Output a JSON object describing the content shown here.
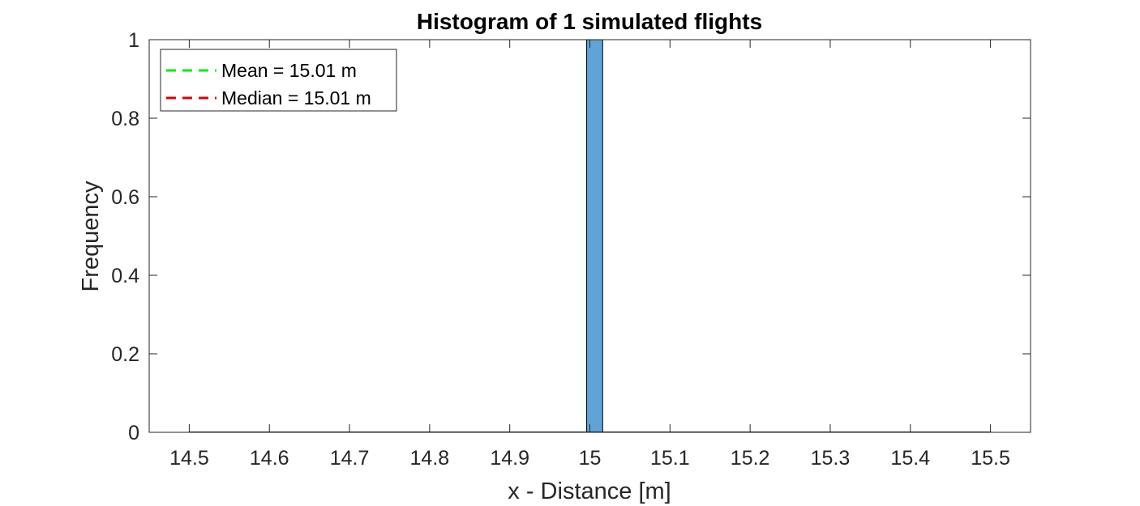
{
  "chart_data": {
    "type": "bar",
    "title": "Histogram of 1 simulated flights",
    "xlabel": "x - Distance [m]",
    "ylabel": "Frequency",
    "xlim": [
      14.45,
      15.55
    ],
    "ylim": [
      0,
      1
    ],
    "xticks": [
      14.5,
      14.6,
      14.7,
      14.8,
      14.9,
      15,
      15.1,
      15.2,
      15.3,
      15.4,
      15.5
    ],
    "xtick_labels": [
      "14.5",
      "14.6",
      "14.7",
      "14.8",
      "14.9",
      "15",
      "15.1",
      "15.2",
      "15.3",
      "15.4",
      "15.5"
    ],
    "yticks": [
      0,
      0.2,
      0.4,
      0.6,
      0.8,
      1
    ],
    "ytick_labels": [
      "0",
      "0.2",
      "0.4",
      "0.6",
      "0.8",
      "1"
    ],
    "bins": [
      {
        "x0": 14.996,
        "x1": 15.016,
        "count": 1
      }
    ],
    "bar_color": "#5fa3d7",
    "bar_edge_color": "#000000",
    "grid": false,
    "legend": {
      "placement": "top-left",
      "entries": [
        {
          "label": "Mean = 15.01 m",
          "color": "#00ee00",
          "style": "dashed",
          "value": 15.01
        },
        {
          "label": "Median = 15.01 m",
          "color": "#dd0000",
          "style": "dashed",
          "value": 15.01
        }
      ]
    }
  }
}
